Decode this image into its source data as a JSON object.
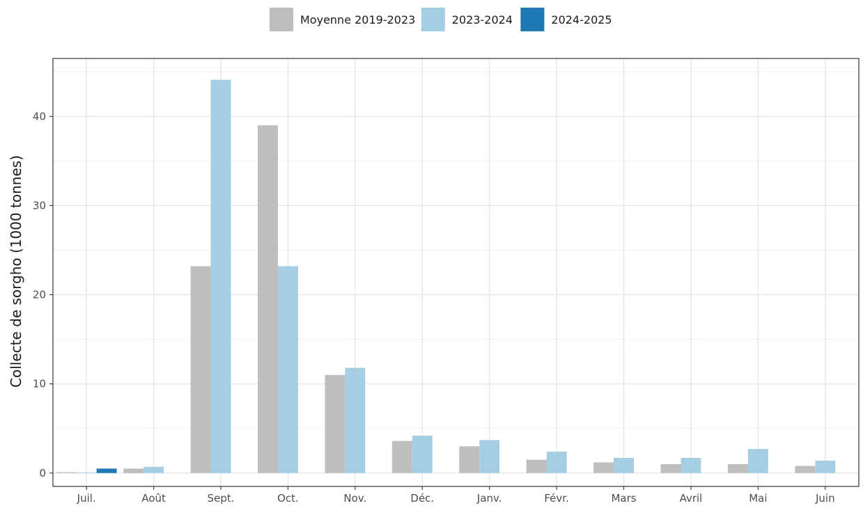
{
  "chart_data": {
    "type": "bar",
    "title": "",
    "xlabel": "",
    "ylabel": "Collecte de sorgho (1000 tonnes)",
    "categories": [
      "Juil.",
      "Août",
      "Sept.",
      "Oct.",
      "Nov.",
      "Déc.",
      "Janv.",
      "Févr.",
      "Mars",
      "Avril",
      "Mai",
      "Juin"
    ],
    "series": [
      {
        "name": "Moyenne 2019-2023",
        "color": "#bebebe",
        "values": [
          0.1,
          0.5,
          23.2,
          39.0,
          11.0,
          3.6,
          3.0,
          1.5,
          1.2,
          1.0,
          1.0,
          0.8
        ]
      },
      {
        "name": "2023-2024",
        "color": "#a6cee3",
        "values": [
          0.05,
          0.7,
          44.1,
          23.2,
          11.8,
          4.2,
          3.7,
          2.4,
          1.7,
          1.7,
          2.7,
          1.4
        ]
      },
      {
        "name": "2024-2025",
        "color": "#1f78b4",
        "values": [
          0.5,
          null,
          null,
          null,
          null,
          null,
          null,
          null,
          null,
          null,
          null,
          null
        ]
      }
    ],
    "ylim": [
      -1.5,
      46.5
    ],
    "yticks": [
      0,
      10,
      20,
      30,
      40
    ],
    "ytick_labels": [
      "0",
      "10",
      "20",
      "30",
      "40"
    ],
    "grid": true,
    "legend_position": "top"
  }
}
